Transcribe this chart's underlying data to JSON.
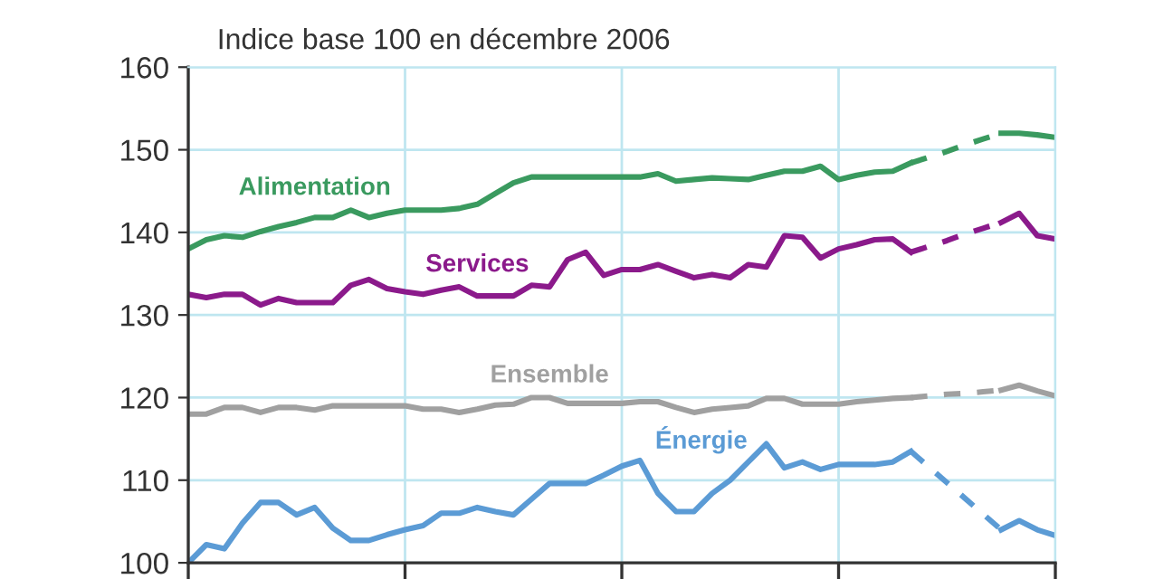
{
  "chart_data": {
    "type": "line",
    "title": "Indice base 100 en décembre 2006",
    "categories": [
      null,
      null,
      null,
      null,
      null,
      null,
      null,
      null,
      null,
      null,
      null,
      null,
      null,
      null,
      null,
      null,
      null,
      null,
      null,
      null,
      null,
      null,
      null,
      null,
      null,
      null,
      null,
      null,
      null,
      null,
      null,
      null,
      null,
      null,
      null,
      null,
      null,
      null,
      null,
      null,
      null,
      null,
      null,
      null,
      null,
      null,
      null,
      null,
      null
    ],
    "ylim": [
      100,
      160
    ],
    "yticks": [
      100,
      110,
      120,
      130,
      140,
      150,
      160
    ],
    "grid": true,
    "marker": "none",
    "series": [
      {
        "name": "Alimentation",
        "color": "#3a9a5f",
        "line_style": "solid",
        "values": [
          138.0,
          139.1,
          139.6,
          139.4,
          140.1,
          140.7,
          141.2,
          141.8,
          141.8,
          142.7,
          141.8,
          142.3,
          142.7,
          142.7,
          142.7,
          142.9,
          143.4,
          144.7,
          146.0,
          146.7,
          146.7,
          146.7,
          146.7,
          146.7,
          146.7,
          146.7,
          147.1,
          146.2,
          146.4,
          146.6,
          146.5,
          146.4,
          146.9,
          147.4,
          147.4,
          148.0,
          146.4,
          146.9,
          147.3,
          147.4,
          148.4,
          null,
          null,
          null,
          null,
          null,
          null,
          null,
          null
        ]
      },
      {
        "color": "#3a9a5f",
        "line_style": "dashed",
        "values": [
          null,
          null,
          null,
          null,
          null,
          null,
          null,
          null,
          null,
          null,
          null,
          null,
          null,
          null,
          null,
          null,
          null,
          null,
          null,
          null,
          null,
          null,
          null,
          null,
          null,
          null,
          null,
          null,
          null,
          null,
          null,
          null,
          null,
          null,
          null,
          null,
          null,
          null,
          null,
          null,
          148.4,
          149.1,
          149.8,
          150.6,
          151.3,
          152.0,
          null,
          null,
          null
        ]
      },
      {
        "color": "#3a9a5f",
        "line_style": "solid",
        "values": [
          null,
          null,
          null,
          null,
          null,
          null,
          null,
          null,
          null,
          null,
          null,
          null,
          null,
          null,
          null,
          null,
          null,
          null,
          null,
          null,
          null,
          null,
          null,
          null,
          null,
          null,
          null,
          null,
          null,
          null,
          null,
          null,
          null,
          null,
          null,
          null,
          null,
          null,
          null,
          null,
          null,
          null,
          null,
          null,
          null,
          152.0,
          152.0,
          151.8,
          151.5
        ]
      },
      {
        "name": "Services",
        "color": "#8b1a8b",
        "line_style": "solid",
        "values": [
          132.5,
          132.1,
          132.5,
          132.5,
          131.2,
          132.0,
          131.5,
          131.5,
          131.5,
          133.6,
          134.3,
          133.2,
          132.8,
          132.5,
          133.0,
          133.4,
          132.3,
          132.3,
          132.3,
          133.6,
          133.4,
          136.7,
          137.6,
          134.8,
          135.5,
          135.5,
          136.1,
          135.3,
          134.5,
          134.9,
          134.5,
          136.1,
          135.8,
          139.6,
          139.4,
          136.9,
          138.0,
          138.5,
          139.1,
          139.2,
          137.6,
          null,
          null,
          null,
          null,
          null,
          null,
          null,
          null
        ]
      },
      {
        "color": "#8b1a8b",
        "line_style": "dashed",
        "values": [
          null,
          null,
          null,
          null,
          null,
          null,
          null,
          null,
          null,
          null,
          null,
          null,
          null,
          null,
          null,
          null,
          null,
          null,
          null,
          null,
          null,
          null,
          null,
          null,
          null,
          null,
          null,
          null,
          null,
          null,
          null,
          null,
          null,
          null,
          null,
          null,
          null,
          null,
          null,
          null,
          137.6,
          138.3,
          139.0,
          139.8,
          140.5,
          141.2,
          null,
          null,
          null
        ]
      },
      {
        "color": "#8b1a8b",
        "line_style": "solid",
        "values": [
          null,
          null,
          null,
          null,
          null,
          null,
          null,
          null,
          null,
          null,
          null,
          null,
          null,
          null,
          null,
          null,
          null,
          null,
          null,
          null,
          null,
          null,
          null,
          null,
          null,
          null,
          null,
          null,
          null,
          null,
          null,
          null,
          null,
          null,
          null,
          null,
          null,
          null,
          null,
          null,
          null,
          null,
          null,
          null,
          null,
          141.2,
          142.3,
          139.6,
          139.2
        ]
      },
      {
        "name": "Ensemble",
        "color": "#a0a0a0",
        "line_style": "solid",
        "values": [
          118.0,
          118.0,
          118.8,
          118.8,
          118.2,
          118.8,
          118.8,
          118.5,
          119.0,
          119.0,
          119.0,
          119.0,
          119.0,
          118.6,
          118.6,
          118.2,
          118.6,
          119.1,
          119.2,
          120.0,
          120.0,
          119.3,
          119.3,
          119.3,
          119.3,
          119.5,
          119.5,
          118.8,
          118.2,
          118.6,
          118.8,
          119.0,
          119.9,
          119.9,
          119.2,
          119.2,
          119.2,
          119.5,
          119.7,
          119.9,
          120.0,
          null,
          null,
          null,
          null,
          null,
          null,
          null,
          null
        ]
      },
      {
        "color": "#a0a0a0",
        "line_style": "dashed",
        "values": [
          null,
          null,
          null,
          null,
          null,
          null,
          null,
          null,
          null,
          null,
          null,
          null,
          null,
          null,
          null,
          null,
          null,
          null,
          null,
          null,
          null,
          null,
          null,
          null,
          null,
          null,
          null,
          null,
          null,
          null,
          null,
          null,
          null,
          null,
          null,
          null,
          null,
          null,
          null,
          null,
          120.0,
          120.2,
          120.4,
          120.5,
          120.7,
          120.9,
          null,
          null,
          null
        ]
      },
      {
        "color": "#a0a0a0",
        "line_style": "solid",
        "values": [
          null,
          null,
          null,
          null,
          null,
          null,
          null,
          null,
          null,
          null,
          null,
          null,
          null,
          null,
          null,
          null,
          null,
          null,
          null,
          null,
          null,
          null,
          null,
          null,
          null,
          null,
          null,
          null,
          null,
          null,
          null,
          null,
          null,
          null,
          null,
          null,
          null,
          null,
          null,
          null,
          null,
          null,
          null,
          null,
          null,
          120.9,
          121.5,
          120.8,
          120.2
        ]
      },
      {
        "name": "Énergie",
        "color": "#5b9bd5",
        "line_style": "solid",
        "values": [
          100.0,
          102.2,
          101.7,
          104.8,
          107.3,
          107.3,
          105.8,
          106.7,
          104.2,
          102.7,
          102.7,
          103.4,
          104.0,
          104.5,
          106.0,
          106.0,
          106.7,
          106.2,
          105.8,
          107.7,
          109.6,
          109.6,
          109.6,
          110.6,
          111.7,
          112.4,
          108.4,
          106.2,
          106.2,
          108.4,
          110.0,
          112.2,
          114.4,
          111.5,
          112.2,
          111.3,
          111.9,
          111.9,
          111.9,
          112.2,
          113.5,
          null,
          null,
          null,
          null,
          null,
          null,
          null,
          null
        ]
      },
      {
        "color": "#5b9bd5",
        "line_style": "dashed",
        "values": [
          null,
          null,
          null,
          null,
          null,
          null,
          null,
          null,
          null,
          null,
          null,
          null,
          null,
          null,
          null,
          null,
          null,
          null,
          null,
          null,
          null,
          null,
          null,
          null,
          null,
          null,
          null,
          null,
          null,
          null,
          null,
          null,
          null,
          null,
          null,
          null,
          null,
          null,
          null,
          null,
          113.5,
          111.6,
          109.7,
          107.8,
          105.9,
          104.0,
          null,
          null,
          null
        ]
      },
      {
        "color": "#5b9bd5",
        "line_style": "solid",
        "values": [
          null,
          null,
          null,
          null,
          null,
          null,
          null,
          null,
          null,
          null,
          null,
          null,
          null,
          null,
          null,
          null,
          null,
          null,
          null,
          null,
          null,
          null,
          null,
          null,
          null,
          null,
          null,
          null,
          null,
          null,
          null,
          null,
          null,
          null,
          null,
          null,
          null,
          null,
          null,
          null,
          null,
          null,
          null,
          null,
          null,
          104.0,
          105.1,
          104.0,
          103.3
        ]
      }
    ]
  }
}
